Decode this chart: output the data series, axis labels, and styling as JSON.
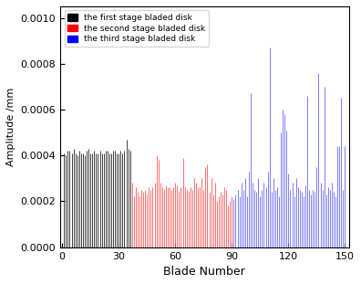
{
  "title": "",
  "xlabel": "Blade Number",
  "ylabel": "Amplitude /mm",
  "ylim": [
    0,
    0.00105
  ],
  "xlim": [
    -1,
    152
  ],
  "yticks": [
    0.0,
    0.0002,
    0.0004,
    0.0006,
    0.0008,
    0.001
  ],
  "ytick_labels": [
    "0.0000",
    "0.0002",
    "0.0004",
    "0.0006",
    "0.0008",
    "0.0010"
  ],
  "xticks": [
    0,
    30,
    60,
    90,
    120,
    150
  ],
  "legend_labels": [
    "the first stage bladed disk",
    "the second stage bladed disk",
    "the third stage bladed disk"
  ],
  "legend_colors": [
    "#000000",
    "#ff0000",
    "#0000ff"
  ],
  "group1_color": "#404040",
  "group2_color": "#ff5555",
  "group3_color": "#6666ff",
  "n_blades_1": 36,
  "n_blades_2": 54,
  "n_blades_3": 60,
  "g1_vals": [
    0.00041,
    0.0004,
    0.00042,
    0.00042,
    0.00041,
    0.00043,
    0.00041,
    0.0004,
    0.00042,
    0.00041,
    0.00041,
    0.0004,
    0.00042,
    0.00043,
    0.00041,
    0.00041,
    0.00042,
    0.00041,
    0.00041,
    0.00042,
    0.00041,
    0.00041,
    0.00042,
    0.00042,
    0.00041,
    0.00041,
    0.00042,
    0.00042,
    0.00041,
    0.00041,
    0.00042,
    0.00041,
    0.00042,
    0.00047,
    0.00043,
    0.00042
  ],
  "g2_vals": [
    0.00028,
    0.00022,
    0.00026,
    0.00024,
    0.00022,
    0.00025,
    0.00024,
    0.00025,
    0.00023,
    0.00026,
    0.00025,
    0.00026,
    0.00028,
    0.0004,
    0.00038,
    0.00028,
    0.00026,
    0.00025,
    0.00027,
    0.00026,
    0.00026,
    0.00025,
    0.00026,
    0.00028,
    0.00027,
    0.00024,
    0.00026,
    0.00039,
    0.00026,
    0.00025,
    0.00024,
    0.00026,
    0.00025,
    0.0003,
    0.00028,
    0.00026,
    0.00026,
    0.0003,
    0.00025,
    0.00035,
    0.00036,
    0.00024,
    0.0003,
    0.00023,
    0.00028,
    0.0002,
    0.00022,
    0.00024,
    0.00023,
    0.00026,
    0.00025,
    0.00018,
    0.0002,
    0.00022
  ],
  "g3_vals": [
    0.00021,
    0.00023,
    0.00025,
    0.00022,
    0.00028,
    0.00025,
    0.0003,
    0.00022,
    0.00033,
    0.00067,
    0.00028,
    0.00025,
    0.00024,
    0.0003,
    0.00022,
    0.00025,
    0.00028,
    0.00026,
    0.00033,
    0.00087,
    0.00024,
    0.0003,
    0.00025,
    0.00026,
    0.00022,
    0.0005,
    0.0006,
    0.00058,
    0.00051,
    0.00032,
    0.00025,
    0.00028,
    0.00022,
    0.0003,
    0.00026,
    0.00025,
    0.00024,
    0.00022,
    0.00027,
    0.00066,
    0.00025,
    0.00023,
    0.00025,
    0.00024,
    0.00035,
    0.00076,
    0.00028,
    0.00025,
    0.0007,
    0.00023,
    0.00026,
    0.00025,
    0.00028,
    0.00024,
    0.00022,
    0.00044,
    0.00044,
    0.00065,
    0.00025,
    0.00044
  ]
}
